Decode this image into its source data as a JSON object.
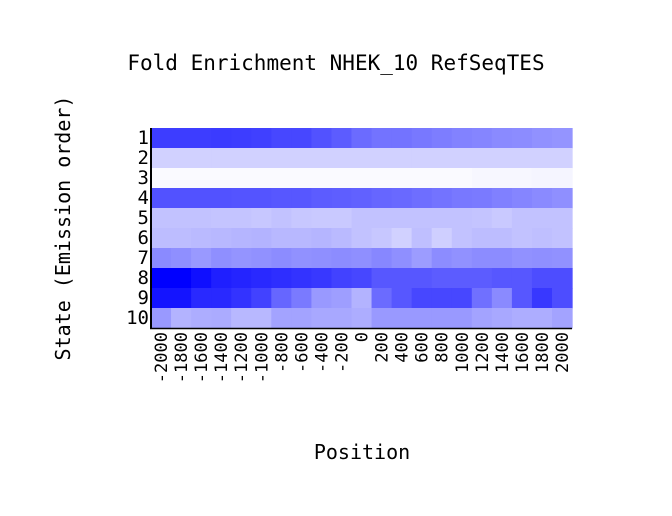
{
  "chart_data": {
    "type": "heatmap",
    "title": "Fold Enrichment NHEK_10 RefSeqTES",
    "xlabel": "Position",
    "ylabel": "State (Emission order)",
    "y_categories": [
      "1",
      "2",
      "3",
      "4",
      "5",
      "6",
      "7",
      "8",
      "9",
      "10"
    ],
    "x_categories": [
      "-2000",
      "-1800",
      "-1600",
      "-1400",
      "-1200",
      "-1000",
      "-800",
      "-600",
      "-400",
      "-200",
      "0",
      "200",
      "400",
      "600",
      "800",
      "1000",
      "1200",
      "1400",
      "1600",
      "1800",
      "2000"
    ],
    "color_low": "#ffffff",
    "color_high": "#0000ff",
    "values": [
      [
        0.76,
        0.76,
        0.76,
        0.77,
        0.76,
        0.75,
        0.72,
        0.72,
        0.68,
        0.64,
        0.58,
        0.55,
        0.55,
        0.53,
        0.51,
        0.49,
        0.48,
        0.46,
        0.45,
        0.43,
        0.42
      ],
      [
        0.18,
        0.18,
        0.18,
        0.18,
        0.18,
        0.18,
        0.18,
        0.18,
        0.18,
        0.18,
        0.18,
        0.18,
        0.18,
        0.18,
        0.18,
        0.18,
        0.18,
        0.18,
        0.18,
        0.18,
        0.18
      ],
      [
        0.02,
        0.02,
        0.02,
        0.02,
        0.02,
        0.02,
        0.02,
        0.02,
        0.02,
        0.02,
        0.02,
        0.02,
        0.02,
        0.02,
        0.02,
        0.02,
        0.03,
        0.03,
        0.03,
        0.04,
        0.04
      ],
      [
        0.68,
        0.68,
        0.68,
        0.68,
        0.67,
        0.67,
        0.66,
        0.66,
        0.64,
        0.63,
        0.62,
        0.6,
        0.59,
        0.57,
        0.55,
        0.53,
        0.52,
        0.5,
        0.48,
        0.46,
        0.44
      ],
      [
        0.24,
        0.24,
        0.24,
        0.23,
        0.23,
        0.22,
        0.24,
        0.22,
        0.21,
        0.21,
        0.24,
        0.24,
        0.24,
        0.24,
        0.24,
        0.24,
        0.23,
        0.21,
        0.24,
        0.24,
        0.24
      ],
      [
        0.26,
        0.26,
        0.27,
        0.28,
        0.29,
        0.3,
        0.28,
        0.28,
        0.29,
        0.27,
        0.24,
        0.22,
        0.18,
        0.25,
        0.19,
        0.24,
        0.26,
        0.26,
        0.24,
        0.25,
        0.24
      ],
      [
        0.46,
        0.44,
        0.4,
        0.44,
        0.42,
        0.43,
        0.45,
        0.43,
        0.44,
        0.45,
        0.44,
        0.47,
        0.44,
        0.39,
        0.45,
        0.43,
        0.45,
        0.45,
        0.43,
        0.44,
        0.43
      ],
      [
        1.0,
        1.0,
        0.94,
        0.88,
        0.86,
        0.84,
        0.82,
        0.8,
        0.78,
        0.74,
        0.72,
        0.66,
        0.66,
        0.66,
        0.64,
        0.64,
        0.64,
        0.66,
        0.66,
        0.7,
        0.7
      ],
      [
        0.92,
        0.92,
        0.84,
        0.84,
        0.8,
        0.74,
        0.6,
        0.52,
        0.4,
        0.38,
        0.3,
        0.58,
        0.66,
        0.72,
        0.72,
        0.72,
        0.56,
        0.46,
        0.66,
        0.78,
        0.7
      ],
      [
        0.4,
        0.3,
        0.32,
        0.33,
        0.28,
        0.28,
        0.36,
        0.36,
        0.34,
        0.34,
        0.32,
        0.4,
        0.4,
        0.4,
        0.4,
        0.4,
        0.36,
        0.34,
        0.32,
        0.32,
        0.36
      ]
    ]
  }
}
